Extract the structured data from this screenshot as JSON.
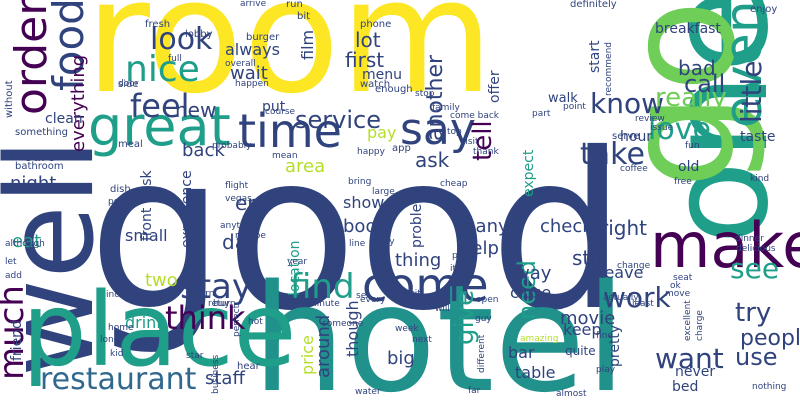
{
  "colors": {
    "background": "#ffffff",
    "purple": "#440154",
    "indigo": "#3b528b",
    "navy": "#30437d",
    "blue": "#31688e",
    "teal": "#21918c",
    "aqua": "#1f9e89",
    "green": "#35b779",
    "lime": "#6ece58",
    "yellowgreen": "#b5de2b",
    "yellow": "#fde725"
  },
  "words": [
    {
      "text": "room"
    },
    {
      "text": "good"
    },
    {
      "text": "hotel"
    },
    {
      "text": "one"
    },
    {
      "text": "go"
    },
    {
      "text": "well"
    },
    {
      "text": "place"
    },
    {
      "text": "make"
    },
    {
      "text": "great"
    },
    {
      "text": "order"
    },
    {
      "text": "food"
    },
    {
      "text": "time"
    },
    {
      "text": "say"
    },
    {
      "text": "come"
    },
    {
      "text": "even"
    },
    {
      "text": "nice"
    },
    {
      "text": "feel"
    },
    {
      "text": "look"
    },
    {
      "text": "new"
    },
    {
      "text": "much"
    },
    {
      "text": "restaurant"
    },
    {
      "text": "think"
    },
    {
      "text": "stay"
    },
    {
      "text": "find"
    },
    {
      "text": "take"
    },
    {
      "text": "know"
    },
    {
      "text": "really"
    },
    {
      "text": "little"
    },
    {
      "text": "love"
    },
    {
      "text": "bad"
    },
    {
      "text": "call"
    },
    {
      "text": "work"
    },
    {
      "text": "try"
    },
    {
      "text": "see"
    },
    {
      "text": "want"
    },
    {
      "text": "give"
    },
    {
      "text": "people"
    },
    {
      "text": "use"
    },
    {
      "text": "service"
    },
    {
      "text": "tell"
    },
    {
      "text": "another"
    },
    {
      "text": "lot"
    },
    {
      "text": "first"
    },
    {
      "text": "wait"
    },
    {
      "text": "always"
    },
    {
      "text": "day"
    },
    {
      "text": "check"
    },
    {
      "text": "right"
    },
    {
      "text": "back"
    },
    {
      "text": "night"
    },
    {
      "text": "everything"
    },
    {
      "text": "clean"
    },
    {
      "text": "eat"
    },
    {
      "text": "drink"
    },
    {
      "text": "two"
    },
    {
      "text": "small"
    },
    {
      "text": "experience"
    },
    {
      "text": "end"
    },
    {
      "text": "area"
    },
    {
      "text": "pay"
    },
    {
      "text": "ask"
    },
    {
      "text": "show"
    },
    {
      "text": "book"
    },
    {
      "text": "problem"
    },
    {
      "text": "help"
    },
    {
      "text": "many"
    },
    {
      "text": "thing"
    },
    {
      "text": "price"
    },
    {
      "text": "around"
    },
    {
      "text": "though"
    },
    {
      "text": "need"
    },
    {
      "text": "still"
    },
    {
      "text": "way"
    },
    {
      "text": "close"
    },
    {
      "text": "movie"
    },
    {
      "text": "keep"
    },
    {
      "text": "bar"
    },
    {
      "text": "big"
    },
    {
      "text": "table"
    },
    {
      "text": "staff"
    },
    {
      "text": "leave"
    },
    {
      "text": "location"
    },
    {
      "text": "front desk"
    },
    {
      "text": "film"
    },
    {
      "text": "menu"
    },
    {
      "text": "offer"
    },
    {
      "text": "pretty"
    },
    {
      "text": "taste"
    },
    {
      "text": "old"
    },
    {
      "text": "never"
    },
    {
      "text": "expect"
    },
    {
      "text": "start"
    },
    {
      "text": "breakfast"
    },
    {
      "text": "friend"
    },
    {
      "text": "sure"
    },
    {
      "text": "put"
    },
    {
      "text": "walk"
    },
    {
      "text": "hour"
    },
    {
      "text": "bed"
    },
    {
      "text": "quite"
    },
    {
      "text": "fresh"
    },
    {
      "text": "lobby"
    },
    {
      "text": "burger"
    },
    {
      "text": "run"
    },
    {
      "text": "arrive"
    },
    {
      "text": "bit"
    },
    {
      "text": "phone"
    },
    {
      "text": "enough"
    },
    {
      "text": "watch"
    },
    {
      "text": "definitely"
    },
    {
      "text": "enjoy"
    },
    {
      "text": "recommend"
    },
    {
      "text": "full"
    },
    {
      "text": "overall"
    },
    {
      "text": "happen"
    },
    {
      "text": "side"
    },
    {
      "text": "door"
    },
    {
      "text": "without"
    },
    {
      "text": "something"
    },
    {
      "text": "meal"
    },
    {
      "text": "course"
    },
    {
      "text": "bathroom"
    },
    {
      "text": "probably"
    },
    {
      "text": "happy"
    },
    {
      "text": "app"
    },
    {
      "text": "stop"
    },
    {
      "text": "family"
    },
    {
      "text": "come back"
    },
    {
      "text": "part"
    },
    {
      "text": "point"
    },
    {
      "text": "review"
    },
    {
      "text": "serve"
    },
    {
      "text": "issue"
    },
    {
      "text": "fun"
    },
    {
      "text": "coffee"
    },
    {
      "text": "free"
    },
    {
      "text": "kind"
    },
    {
      "text": "top"
    },
    {
      "text": "visit"
    },
    {
      "text": "thank"
    },
    {
      "text": "mean"
    },
    {
      "text": "dish"
    },
    {
      "text": "pool"
    },
    {
      "text": "flight"
    },
    {
      "text": "vegas"
    },
    {
      "text": "anything"
    },
    {
      "text": "maybe"
    },
    {
      "text": "bring"
    },
    {
      "text": "large"
    },
    {
      "text": "line"
    },
    {
      "text": "may"
    },
    {
      "text": "cheap"
    },
    {
      "text": "pizza"
    },
    {
      "text": "item"
    },
    {
      "text": "dinner"
    },
    {
      "text": "delicious"
    },
    {
      "text": "although"
    },
    {
      "text": "let"
    },
    {
      "text": "add"
    },
    {
      "text": "include"
    },
    {
      "text": "turn"
    },
    {
      "text": "return"
    },
    {
      "text": "year"
    },
    {
      "text": "set"
    },
    {
      "text": "sit"
    },
    {
      "text": "change"
    },
    {
      "text": "least"
    },
    {
      "text": "seat"
    },
    {
      "text": "excellent"
    },
    {
      "text": "charge"
    },
    {
      "text": "move"
    },
    {
      "text": "ok"
    },
    {
      "text": "actually"
    },
    {
      "text": "buy"
    },
    {
      "text": "perfect"
    },
    {
      "text": "minute"
    },
    {
      "text": "someone"
    },
    {
      "text": "every"
    },
    {
      "text": "open"
    },
    {
      "text": "guy"
    },
    {
      "text": "will"
    },
    {
      "text": "week"
    },
    {
      "text": "next"
    },
    {
      "text": "amazing"
    },
    {
      "text": "fine"
    },
    {
      "text": "play"
    },
    {
      "text": "different"
    },
    {
      "text": "far"
    },
    {
      "text": "almost"
    },
    {
      "text": "nothing"
    },
    {
      "text": "water"
    },
    {
      "text": "hear"
    },
    {
      "text": "star"
    },
    {
      "text": "business"
    },
    {
      "text": "kid"
    },
    {
      "text": "long"
    },
    {
      "text": "home"
    },
    {
      "text": "hot"
    }
  ]
}
